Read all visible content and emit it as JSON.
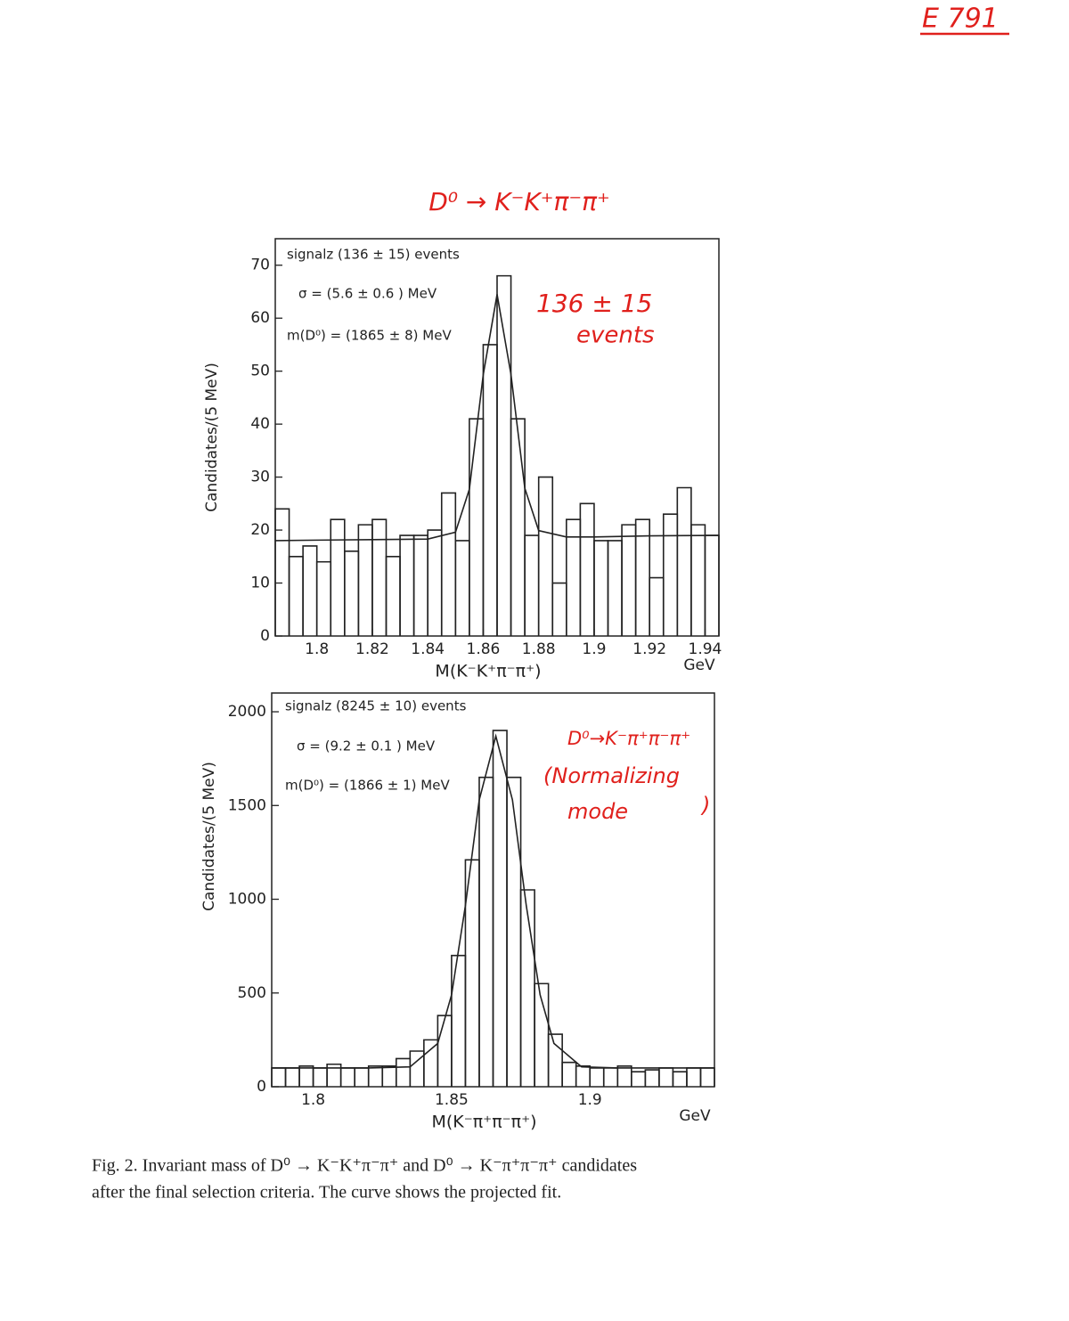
{
  "header": {
    "label": "E 791"
  },
  "annotations": {
    "top_title": "D⁰ → K⁻K⁺π⁻π⁺",
    "top_note": [
      "136 ± 15",
      "events"
    ],
    "bottom_note": [
      "D⁰→K⁻π⁺π⁻π⁺",
      "(Normalizing",
      "mode",
      ")"
    ]
  },
  "chart_data": [
    {
      "type": "histogram",
      "ylabel": "Candidates/(5 MeV)",
      "xlabel": "M(K⁻K⁺π⁻π⁺)",
      "xunit": "GeV",
      "legend_text": [
        "signalz (136  ± 15) events",
        "σ = (5.6 ± 0.6 ) MeV",
        "m(D⁰) = (1865 ± 8) MeV"
      ],
      "bins": [
        1.785,
        1.79,
        1.795,
        1.8,
        1.805,
        1.81,
        1.815,
        1.82,
        1.825,
        1.83,
        1.835,
        1.84,
        1.845,
        1.85,
        1.855,
        1.86,
        1.865,
        1.87,
        1.875,
        1.88,
        1.885,
        1.89,
        1.895,
        1.9,
        1.905,
        1.91,
        1.915,
        1.92,
        1.925,
        1.93,
        1.935,
        1.94,
        1.945
      ],
      "values": [
        24,
        15,
        17,
        14,
        22,
        16,
        21,
        22,
        15,
        19,
        19,
        20,
        27,
        18,
        41,
        55,
        68,
        41,
        19,
        30,
        10,
        22,
        25,
        18,
        18,
        21,
        22,
        11,
        23,
        28,
        21,
        19
      ],
      "fit": {
        "x": [
          1.785,
          1.8,
          1.82,
          1.84,
          1.85,
          1.855,
          1.86,
          1.865,
          1.87,
          1.875,
          1.88,
          1.89,
          1.9,
          1.92,
          1.945
        ],
        "values": [
          18,
          18.1,
          18.2,
          18.3,
          19.6,
          27.7,
          49.3,
          64.5,
          49.4,
          27.9,
          19.9,
          18.7,
          18.7,
          18.9,
          19
        ]
      },
      "color": "#222",
      "xlim": [
        1.785,
        1.945
      ],
      "ylim": [
        0,
        75
      ],
      "xticks": [
        1.8,
        1.82,
        1.84,
        1.86,
        1.88,
        1.9,
        1.92,
        1.94
      ],
      "yticks": [
        0,
        10,
        20,
        30,
        40,
        50,
        60,
        70
      ]
    },
    {
      "type": "histogram",
      "ylabel": "Candidates/(5 MeV)",
      "xlabel": "M(K⁻π⁺π⁻π⁺)",
      "xunit": "GeV",
      "legend_text": [
        "signalz (8245 ± 10) events",
        "σ = (9.2 ± 0.1 ) MeV",
        "m(D⁰) = (1866 ± 1) MeV"
      ],
      "bins": [
        1.785,
        1.79,
        1.795,
        1.8,
        1.805,
        1.81,
        1.815,
        1.82,
        1.825,
        1.83,
        1.835,
        1.84,
        1.845,
        1.85,
        1.855,
        1.86,
        1.865,
        1.87,
        1.875,
        1.88,
        1.885,
        1.89,
        1.895,
        1.9,
        1.905,
        1.91,
        1.915,
        1.92,
        1.925,
        1.93,
        1.935,
        1.94,
        1.945
      ],
      "values": [
        100,
        100,
        110,
        100,
        120,
        100,
        100,
        110,
        110,
        150,
        190,
        250,
        380,
        700,
        1210,
        1650,
        1900,
        1650,
        1050,
        550,
        280,
        130,
        110,
        100,
        100,
        110,
        80,
        90,
        100,
        80,
        100,
        100
      ],
      "fit": {
        "x": [
          1.785,
          1.8,
          1.82,
          1.835,
          1.845,
          1.85,
          1.855,
          1.86,
          1.866,
          1.872,
          1.877,
          1.882,
          1.887,
          1.897,
          1.91,
          1.945
        ],
        "values": [
          100,
          100,
          100,
          106,
          231,
          490,
          966,
          1530,
          1870,
          1530,
          966,
          490,
          231,
          106,
          100,
          100
        ]
      },
      "color": "#222",
      "xlim": [
        1.785,
        1.945
      ],
      "ylim": [
        0,
        2100
      ],
      "xticks": [
        1.8,
        1.85,
        1.9
      ],
      "yticks": [
        0,
        500,
        1000,
        1500,
        2000
      ]
    }
  ],
  "caption": [
    "Fig. 2. Invariant mass of D⁰ → K⁻K⁺π⁻π⁺ and D⁰ → K⁻π⁺π⁻π⁺ candidates",
    "after the final selection criteria. The curve shows the projected fit."
  ]
}
